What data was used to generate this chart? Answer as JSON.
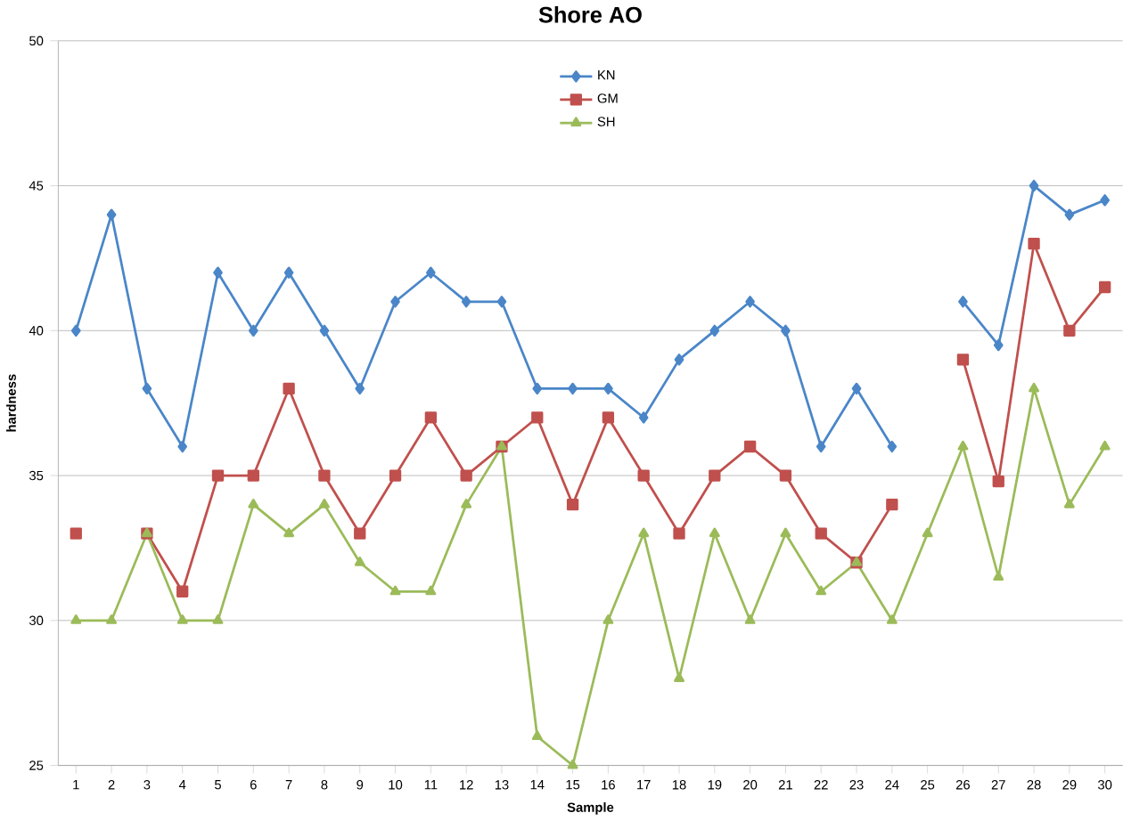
{
  "chart_data": {
    "type": "line",
    "title": "Shore AO",
    "xlabel": "Sample",
    "ylabel": "hardness",
    "categories": [
      "1",
      "2",
      "3",
      "4",
      "5",
      "6",
      "7",
      "8",
      "9",
      "10",
      "11",
      "12",
      "13",
      "14",
      "15",
      "16",
      "17",
      "18",
      "19",
      "20",
      "21",
      "22",
      "23",
      "24",
      "25",
      "26",
      "27",
      "28",
      "29",
      "30"
    ],
    "series": [
      {
        "name": "KN",
        "color": "#4a86c8",
        "marker": "diamond",
        "values": [
          40,
          44,
          38,
          36,
          42,
          40,
          42,
          40,
          38,
          41,
          42,
          41,
          41,
          38,
          38,
          38,
          37,
          39,
          40,
          41,
          40,
          36,
          38,
          36,
          null,
          41,
          39.5,
          45,
          44,
          44.5
        ]
      },
      {
        "name": "GM",
        "color": "#c0504d",
        "marker": "square",
        "values": [
          33,
          null,
          33,
          31,
          35,
          35,
          38,
          35,
          33,
          35,
          37,
          35,
          36,
          37,
          34,
          37,
          35,
          33,
          35,
          36,
          35,
          33,
          32,
          34,
          null,
          39,
          34.8,
          43,
          40,
          41.5
        ]
      },
      {
        "name": "SH",
        "color": "#9bbb59",
        "marker": "triangle",
        "values": [
          30,
          30,
          33,
          30,
          30,
          34,
          33,
          34,
          32,
          31,
          31,
          34,
          36,
          26,
          25,
          30,
          33,
          28,
          33,
          30,
          33,
          31,
          32,
          30,
          33,
          36,
          31.5,
          38,
          34,
          36
        ]
      }
    ],
    "ylim": [
      25,
      50
    ],
    "yticks": [
      25,
      30,
      35,
      40,
      45,
      50
    ],
    "grid": "y",
    "legend": "top"
  }
}
